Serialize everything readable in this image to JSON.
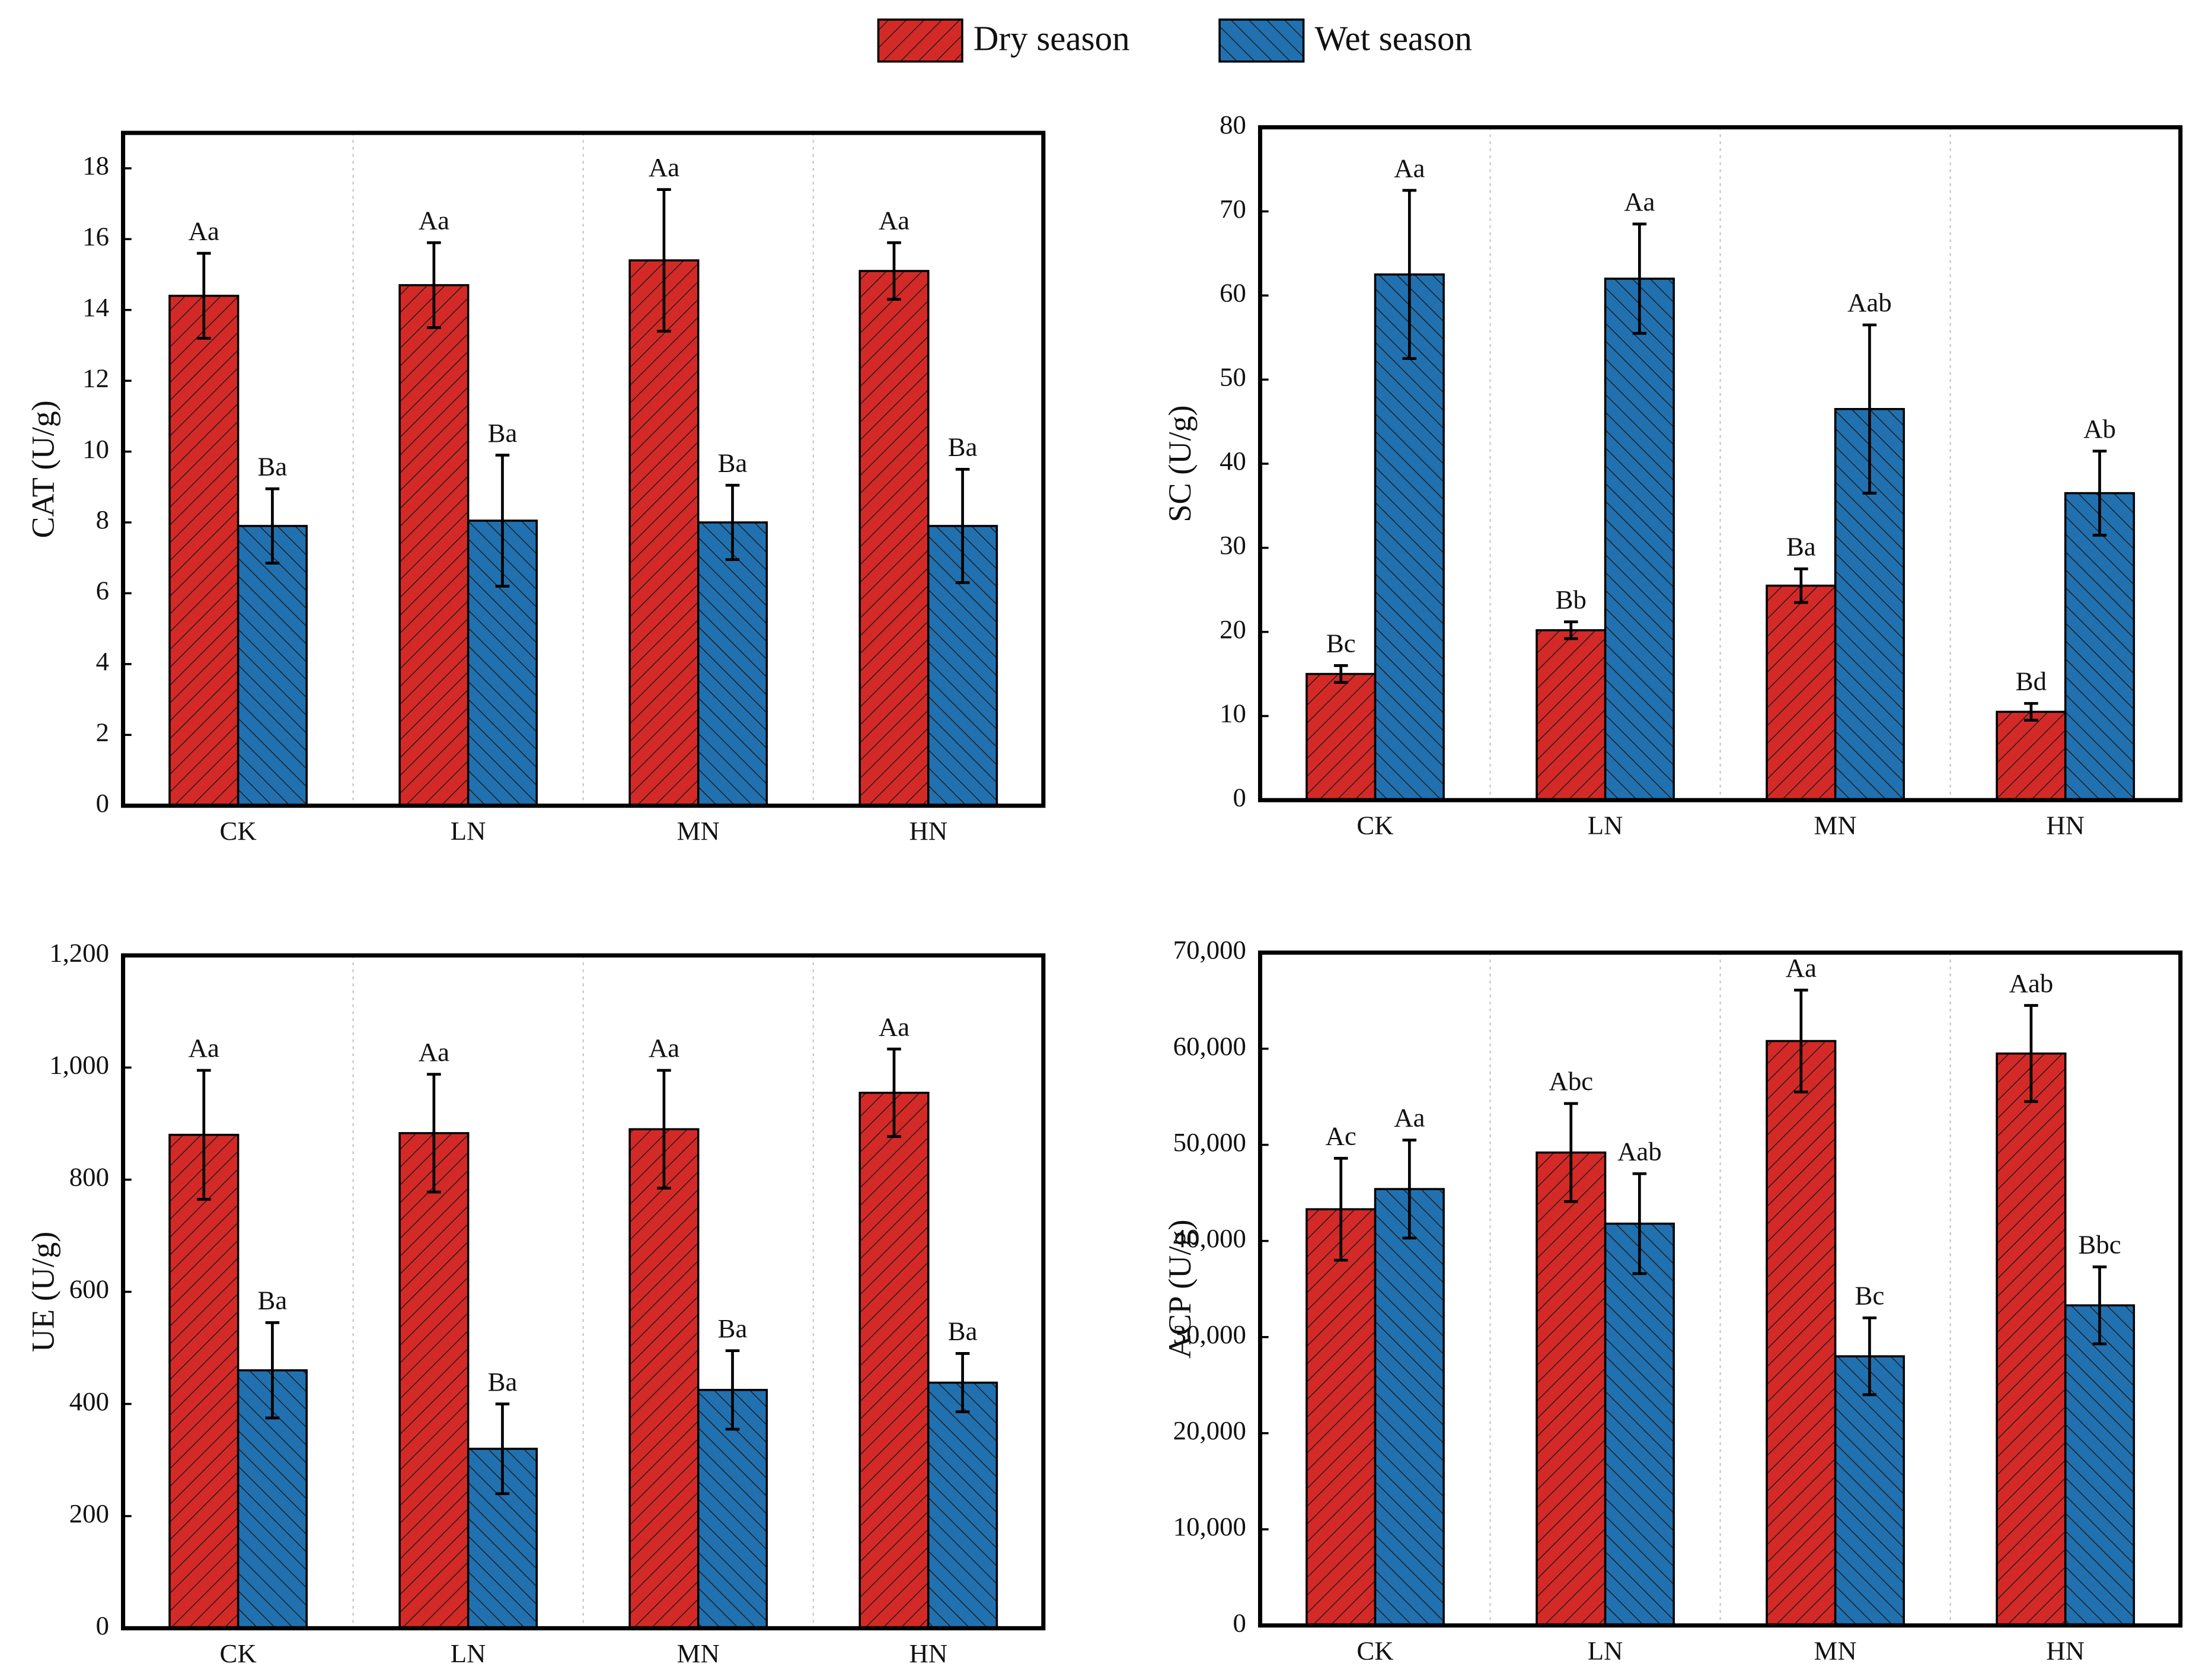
{
  "chart_data": [
    {
      "type": "bar",
      "y_label": "CAT (U/g)",
      "categories": [
        "CK",
        "LN",
        "MN",
        "HN"
      ],
      "series": [
        {
          "name": "Dry season",
          "color": "#d42a27",
          "values": [
            14.4,
            14.7,
            15.4,
            15.1
          ],
          "errors": [
            1.2,
            1.2,
            2.0,
            0.8
          ],
          "labels": [
            "Aa",
            "Aa",
            "Aa",
            "Aa"
          ]
        },
        {
          "name": "Wet season",
          "color": "#2171b0",
          "values": [
            7.9,
            8.05,
            8.0,
            7.9
          ],
          "errors": [
            1.05,
            1.85,
            1.05,
            1.6
          ],
          "labels": [
            "Ba",
            "Ba",
            "Ba",
            "Ba"
          ]
        }
      ],
      "ylim": [
        0,
        19
      ],
      "yticks": [
        0,
        2,
        4,
        6,
        8,
        10,
        12,
        14,
        16,
        18
      ],
      "grid": true
    },
    {
      "type": "bar",
      "y_label": "SC (U/g)",
      "categories": [
        "CK",
        "LN",
        "MN",
        "HN"
      ],
      "series": [
        {
          "color": "#d42a27",
          "values": [
            15,
            20.2,
            25.5,
            10.5
          ],
          "errors": [
            1,
            1,
            2,
            1
          ],
          "labels": [
            "Bc",
            "Bb",
            "Ba",
            "Bd"
          ]
        },
        {
          "color": "#2171b0",
          "values": [
            62.5,
            62,
            46.5,
            36.5
          ],
          "errors": [
            10,
            6.5,
            10,
            5
          ],
          "labels": [
            "Aa",
            "Aa",
            "Aab",
            "Ab"
          ]
        }
      ],
      "ylim": [
        0,
        80
      ],
      "yticks": [
        0,
        10,
        20,
        30,
        40,
        50,
        60,
        70,
        80
      ],
      "grid": true
    },
    {
      "type": "bar",
      "y_label": "UE (U/g)",
      "categories": [
        "CK",
        "LN",
        "MN",
        "HN"
      ],
      "series": [
        {
          "color": "#d42a27",
          "values": [
            880,
            883,
            890,
            955
          ],
          "errors": [
            115,
            105,
            105,
            78
          ],
          "labels": [
            "Aa",
            "Aa",
            "Aa",
            "Aa"
          ]
        },
        {
          "color": "#2171b0",
          "values": [
            460,
            320,
            425,
            438
          ],
          "errors": [
            85,
            80,
            70,
            52
          ],
          "labels": [
            "Ba",
            "Ba",
            "Ba",
            "Ba"
          ]
        }
      ],
      "ylim": [
        0,
        1200
      ],
      "yticks": [
        0,
        200,
        400,
        600,
        800,
        {
          "value": 1000,
          "label": "1,000"
        },
        {
          "value": 1200,
          "label": "1,200"
        }
      ],
      "grid": true
    },
    {
      "type": "bar",
      "y_label": "ACP (U/g)",
      "categories": [
        "CK",
        "LN",
        "MN",
        "HN"
      ],
      "series": [
        {
          "color": "#d42a27",
          "values": [
            43300,
            49200,
            60800,
            59500
          ],
          "errors": [
            5300,
            5100,
            5300,
            5000
          ],
          "labels": [
            "Ac",
            "Abc",
            "Aa",
            "Aab"
          ]
        },
        {
          "color": "#2171b0",
          "values": [
            45400,
            41800,
            28000,
            33300
          ],
          "errors": [
            5100,
            5200,
            4000,
            4000
          ],
          "labels": [
            "Aa",
            "Aab",
            "Bc",
            "Bbc"
          ]
        }
      ],
      "ylim": [
        0,
        70000
      ],
      "yticks": [
        0,
        {
          "value": 10000,
          "label": "10,000"
        },
        {
          "value": 20000,
          "label": "20,000"
        },
        {
          "value": 30000,
          "label": "30,000"
        },
        {
          "value": 40000,
          "label": "40,000"
        },
        {
          "value": 50000,
          "label": "50,000"
        },
        {
          "value": 60000,
          "label": "60,000"
        },
        {
          "value": 70000,
          "label": "70,000"
        }
      ],
      "grid": true
    }
  ]
}
